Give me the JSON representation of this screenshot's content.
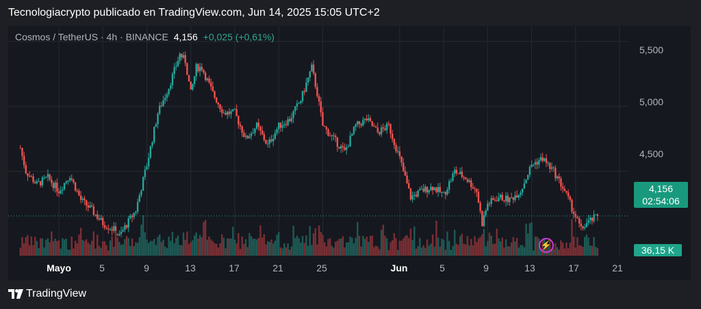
{
  "header": {
    "attribution": "Tecnologiacrypto publicado en TradingView.com, Jun 14, 2025 15:05 UTC+2"
  },
  "symbol": {
    "label": "Cosmos / TetherUS · 4h · BINANCE",
    "price": "4,156",
    "change": "+0,025 (+0,61%)"
  },
  "price_tag": {
    "price": "4,156",
    "countdown": "02:54:06"
  },
  "volume_tag": {
    "label": "36,15 K"
  },
  "footer": {
    "brand": "TradingView",
    "logo_icon": "tradingview-logo-icon"
  },
  "colors": {
    "up": "#26a69a",
    "down": "#ef5350",
    "background": "#16181f",
    "last_price_line": "#26a69a",
    "volume_up": "#1e5a55",
    "volume_down": "#7a2f34"
  },
  "chart_data": {
    "type": "candlestick",
    "timeframe": "4h",
    "ylim": [
      3.85,
      5.62
    ],
    "ytick_labels": [
      "5,500",
      "5,000",
      "4,500"
    ],
    "yticks": [
      5.5,
      5.0,
      4.5
    ],
    "xtick_labels": [
      "Mayo",
      "5",
      "9",
      "13",
      "17",
      "21",
      "25",
      "Jun",
      "5",
      "9",
      "13",
      "17",
      "21"
    ],
    "x_day_positions": [
      0,
      4,
      8,
      12,
      16,
      20,
      24,
      31,
      35,
      39,
      43,
      47,
      51
    ],
    "last_price": 4.156,
    "anchors": [
      [
        -3.5,
        4.68
      ],
      [
        -3.0,
        4.5
      ],
      [
        -2.0,
        4.4
      ],
      [
        -1.0,
        4.45
      ],
      [
        0.0,
        4.35
      ],
      [
        1.0,
        4.47
      ],
      [
        2.0,
        4.28
      ],
      [
        3.0,
        4.2
      ],
      [
        4.0,
        4.1
      ],
      [
        5.0,
        4.05
      ],
      [
        5.5,
        4.0
      ],
      [
        6.0,
        4.07
      ],
      [
        7.0,
        4.2
      ],
      [
        8.0,
        4.55
      ],
      [
        9.0,
        4.95
      ],
      [
        10.0,
        5.15
      ],
      [
        11.0,
        5.4
      ],
      [
        11.5,
        5.35
      ],
      [
        12.0,
        5.1
      ],
      [
        12.5,
        5.3
      ],
      [
        13.0,
        5.3
      ],
      [
        14.0,
        5.1
      ],
      [
        15.0,
        4.95
      ],
      [
        16.0,
        4.95
      ],
      [
        17.0,
        4.75
      ],
      [
        18.0,
        4.85
      ],
      [
        19.0,
        4.7
      ],
      [
        20.0,
        4.85
      ],
      [
        21.0,
        4.9
      ],
      [
        22.0,
        5.05
      ],
      [
        23.0,
        5.3
      ],
      [
        23.5,
        5.1
      ],
      [
        24.0,
        4.85
      ],
      [
        25.0,
        4.75
      ],
      [
        26.0,
        4.65
      ],
      [
        27.0,
        4.85
      ],
      [
        28.0,
        4.9
      ],
      [
        29.0,
        4.8
      ],
      [
        30.0,
        4.85
      ],
      [
        31.0,
        4.6
      ],
      [
        31.5,
        4.45
      ],
      [
        32.0,
        4.3
      ],
      [
        33.0,
        4.35
      ],
      [
        34.0,
        4.38
      ],
      [
        35.0,
        4.32
      ],
      [
        36.0,
        4.5
      ],
      [
        37.0,
        4.45
      ],
      [
        38.0,
        4.35
      ],
      [
        38.5,
        4.1
      ],
      [
        39.0,
        4.25
      ],
      [
        40.0,
        4.3
      ],
      [
        41.0,
        4.28
      ],
      [
        42.0,
        4.35
      ],
      [
        43.0,
        4.55
      ],
      [
        44.0,
        4.6
      ],
      [
        45.0,
        4.5
      ],
      [
        46.0,
        4.35
      ],
      [
        47.0,
        4.15
      ],
      [
        47.5,
        4.05
      ],
      [
        48.0,
        4.1
      ],
      [
        49.0,
        4.156
      ]
    ],
    "volume_ylim": [
      0,
      100
    ],
    "volume_last": 36.15
  }
}
